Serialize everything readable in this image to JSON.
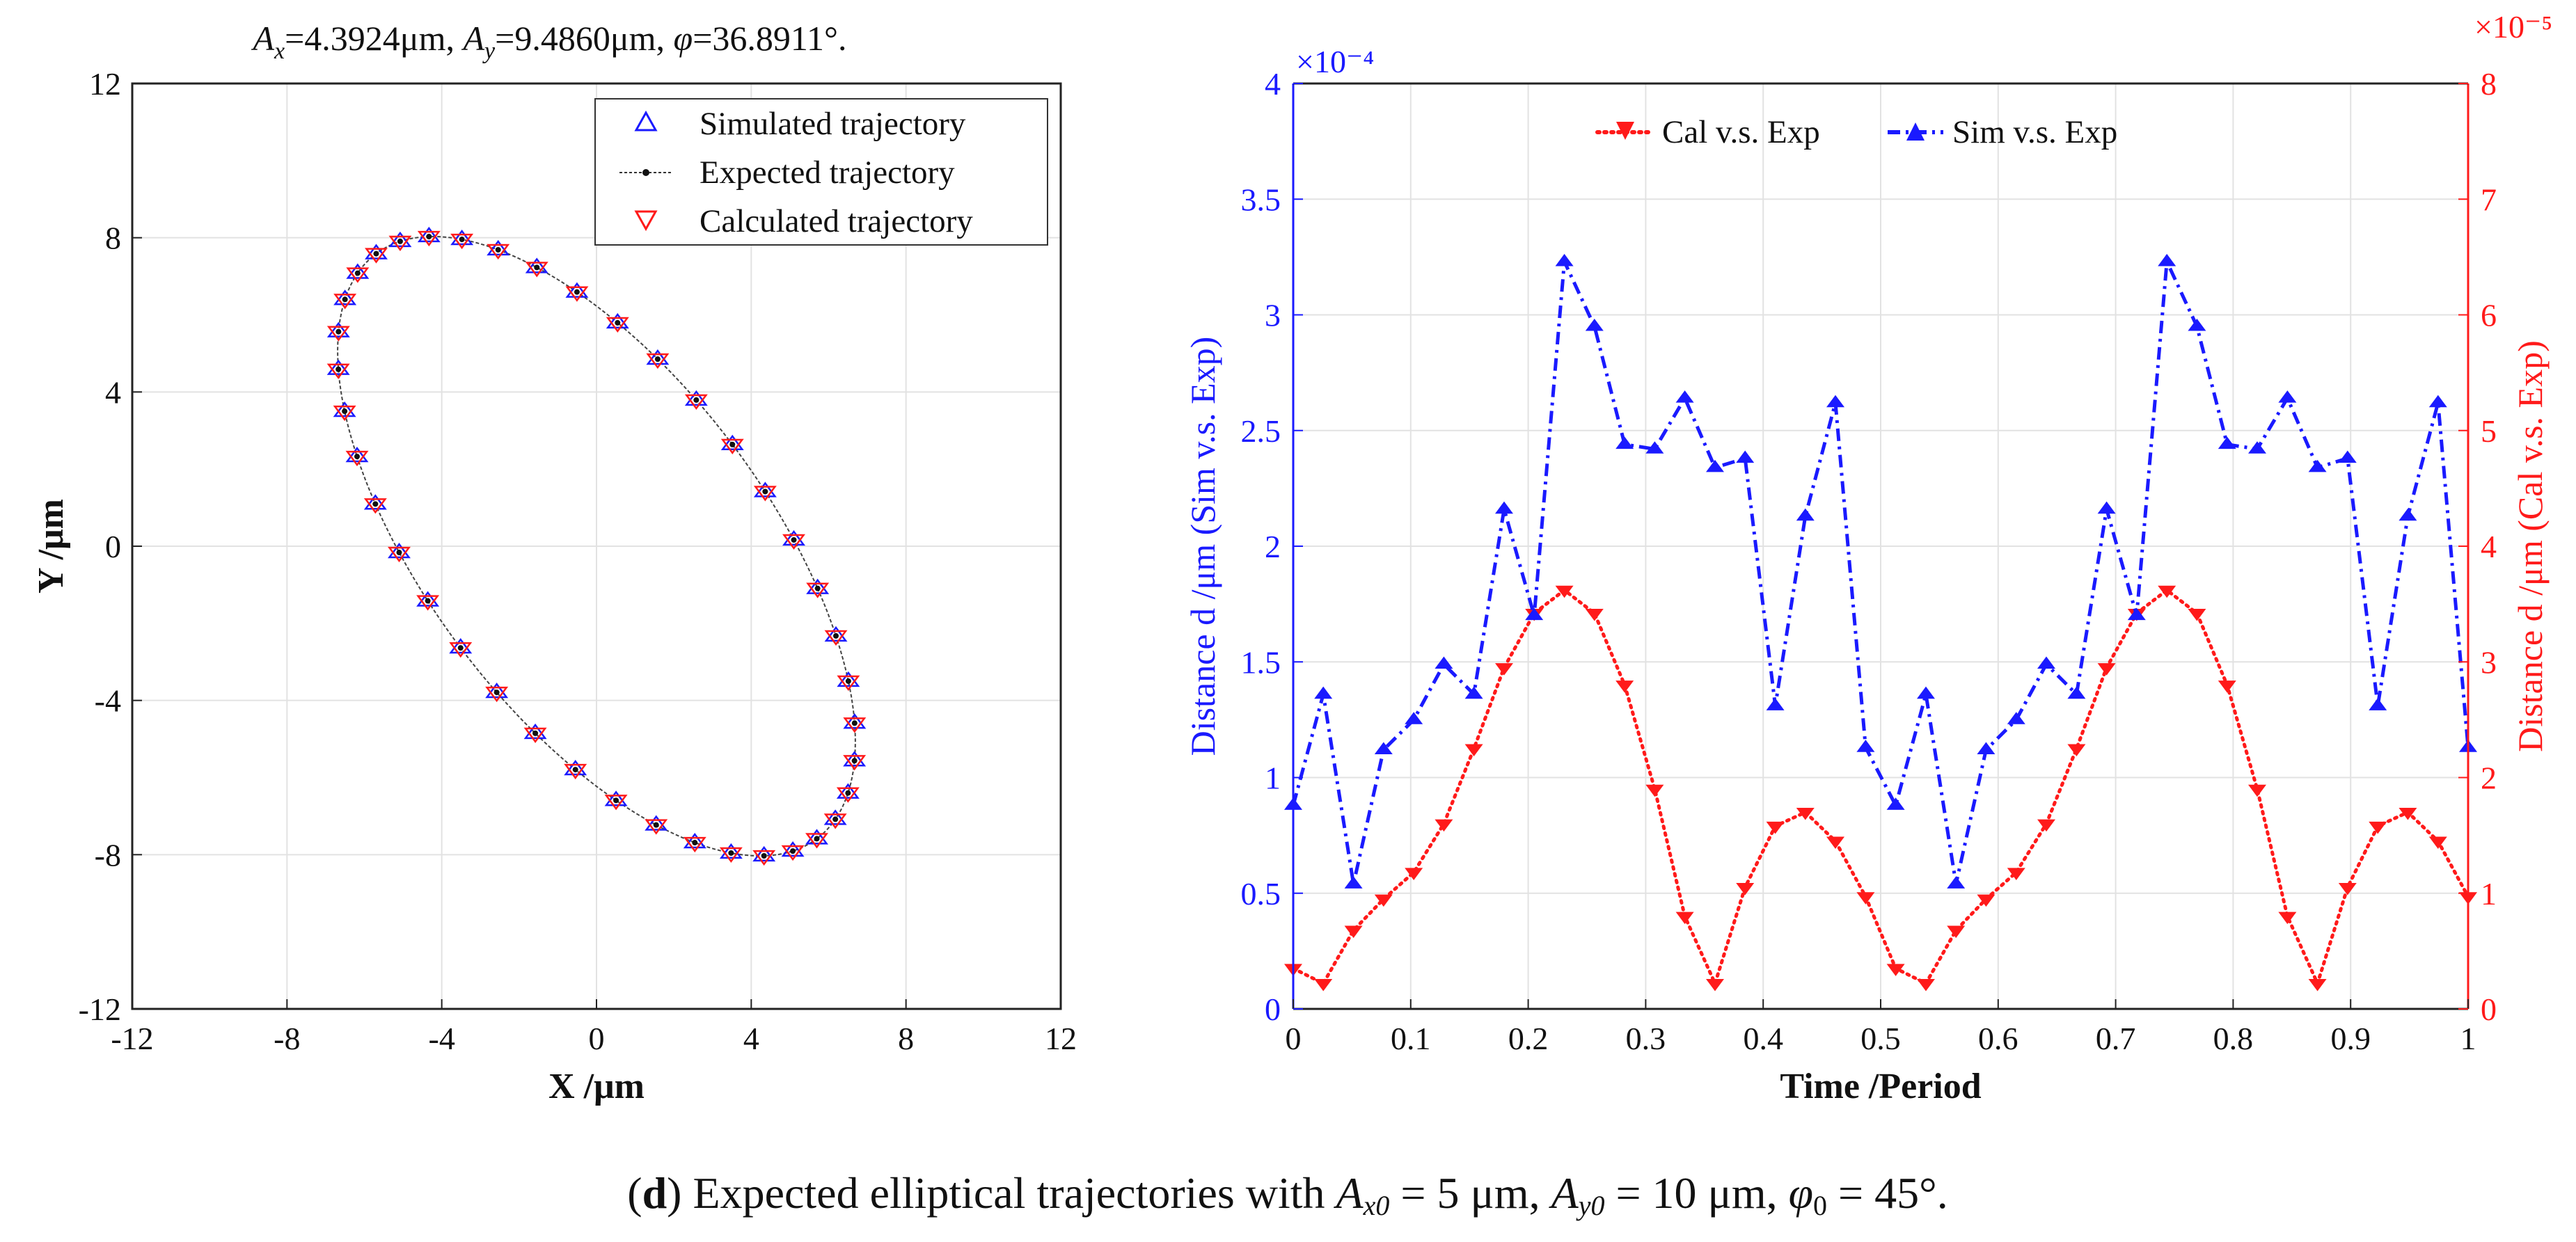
{
  "left_title": {
    "ax_label": "A",
    "ax_sub": "x",
    "ax_val": "=4.3924",
    "ax_unit": "μm, ",
    "ay_label": "A",
    "ay_sub": "y",
    "ay_val": "=9.4860",
    "ay_unit": "μm, ",
    "phi_label": "φ",
    "phi_val": "=36.8911°."
  },
  "caption": {
    "open": "(",
    "letter": "d",
    "text1": ") Expected elliptical trajectories with ",
    "ax0_sym": "A",
    "ax0_sub": "x0",
    "text2": " = 5 μm, ",
    "ay0_sym": "A",
    "ay0_sub": "y0",
    "text3": " = 10 μm, ",
    "phi0_sym": "φ",
    "phi0_sub": "0",
    "text4": " = 45°."
  },
  "colors": {
    "blue": "#1a1aff",
    "red": "#ff1a1a",
    "black": "#111111",
    "grid": "#e2e2e2"
  },
  "chart_data": [
    {
      "type": "scatter",
      "xlabel": "X /μm",
      "ylabel": "Y /μm",
      "xlim": [
        -12,
        12
      ],
      "ylim": [
        -12,
        12
      ],
      "xticks": [
        -12,
        -8,
        -4,
        0,
        4,
        8,
        12
      ],
      "yticks": [
        -12,
        -8,
        -4,
        0,
        4,
        8,
        12
      ],
      "xtick_labels": [
        "-12",
        "-8",
        "-4",
        "0",
        "4",
        "8",
        "12"
      ],
      "ytick_labels": [
        "-12",
        "-8",
        "-4",
        "0",
        "4",
        "8",
        "12"
      ],
      "grid": true,
      "legend_position": "top-right",
      "legend": [
        "Simulated trajectory",
        "Expected trajectory",
        "Calculated trajectory"
      ],
      "ellipse": {
        "center": [
          0,
          0
        ],
        "Ax": 4.3924,
        "Ay": 9.486,
        "phi_deg": 36.8911,
        "n_points": 40
      }
    },
    {
      "type": "line",
      "xlabel": "Time /Period",
      "ylabel_left": "Distance d /μm (Sim v.s. Exp)",
      "ylabel_right": "Distance d /μm (Cal v.s. Exp)",
      "xlim": [
        0,
        1
      ],
      "ylim_left": [
        0,
        4
      ],
      "ylim_right": [
        0,
        8
      ],
      "xticks": [
        0,
        0.1,
        0.2,
        0.3,
        0.4,
        0.5,
        0.6,
        0.7,
        0.8,
        0.9,
        1
      ],
      "xtick_labels": [
        "0",
        "0.1",
        "0.2",
        "0.3",
        "0.4",
        "0.5",
        "0.6",
        "0.7",
        "0.8",
        "0.9",
        "1"
      ],
      "yticks_left": [
        0,
        0.5,
        1,
        1.5,
        2,
        2.5,
        3,
        3.5,
        4
      ],
      "ytick_labels_left": [
        "0",
        "0.5",
        "1",
        "1.5",
        "2",
        "2.5",
        "3",
        "3.5",
        "4"
      ],
      "yticks_right": [
        0,
        1,
        2,
        3,
        4,
        5,
        6,
        7,
        8
      ],
      "ytick_labels_right": [
        "0",
        "1",
        "2",
        "3",
        "4",
        "5",
        "6",
        "7",
        "8"
      ],
      "exp_left": "×10⁻⁴",
      "exp_right": "×10⁻⁵",
      "grid": true,
      "legend_position": "top",
      "series": [
        {
          "name": "Cal v.s. Exp",
          "axis": "right",
          "color": "red",
          "style": "dotted",
          "marker": "triangle-down",
          "x": [
            0,
            0.0256,
            0.0513,
            0.0769,
            0.1026,
            0.1282,
            0.1538,
            0.1795,
            0.2051,
            0.2308,
            0.2564,
            0.2821,
            0.3077,
            0.3333,
            0.359,
            0.3846,
            0.4103,
            0.4359,
            0.4615,
            0.4872,
            0.5128,
            0.5385,
            0.5641,
            0.5897,
            0.6154,
            0.641,
            0.6667,
            0.6923,
            0.7179,
            0.7436,
            0.7692,
            0.7949,
            0.8205,
            0.8462,
            0.8718,
            0.8974,
            0.9231,
            0.9487,
            0.9744,
            1
          ],
          "values": [
            0.35,
            0.22,
            0.68,
            0.95,
            1.18,
            1.6,
            2.25,
            2.95,
            3.42,
            3.62,
            3.42,
            2.8,
            1.9,
            0.8,
            0.22,
            1.05,
            1.58,
            1.7,
            1.45,
            0.97,
            0.35,
            0.22,
            0.68,
            0.95,
            1.18,
            1.6,
            2.25,
            2.95,
            3.42,
            3.62,
            3.42,
            2.8,
            1.9,
            0.8,
            0.22,
            1.05,
            1.58,
            1.7,
            1.45,
            0.97
          ]
        },
        {
          "name": "Sim v.s. Exp",
          "axis": "left",
          "color": "blue",
          "style": "dashdot",
          "marker": "triangle-up",
          "x": [
            0,
            0.0256,
            0.0513,
            0.0769,
            0.1026,
            0.1282,
            0.1538,
            0.1795,
            0.2051,
            0.2308,
            0.2564,
            0.2821,
            0.3077,
            0.3333,
            0.359,
            0.3846,
            0.4103,
            0.4359,
            0.4615,
            0.4872,
            0.5128,
            0.5385,
            0.5641,
            0.5897,
            0.6154,
            0.641,
            0.6667,
            0.6923,
            0.7179,
            0.7436,
            0.7692,
            0.7949,
            0.8205,
            0.8462,
            0.8718,
            0.8974,
            0.9231,
            0.9487,
            0.9744,
            1
          ],
          "values": [
            0.88,
            1.36,
            0.54,
            1.12,
            1.25,
            1.49,
            1.36,
            2.16,
            1.7,
            3.23,
            2.95,
            2.44,
            2.42,
            2.64,
            2.34,
            2.38,
            1.31,
            2.13,
            2.62,
            1.13,
            0.88,
            1.36,
            0.54,
            1.12,
            1.25,
            1.49,
            1.36,
            2.16,
            1.7,
            3.23,
            2.95,
            2.44,
            2.42,
            2.64,
            2.34,
            2.38,
            1.31,
            2.13,
            2.62,
            1.13
          ]
        }
      ]
    }
  ]
}
